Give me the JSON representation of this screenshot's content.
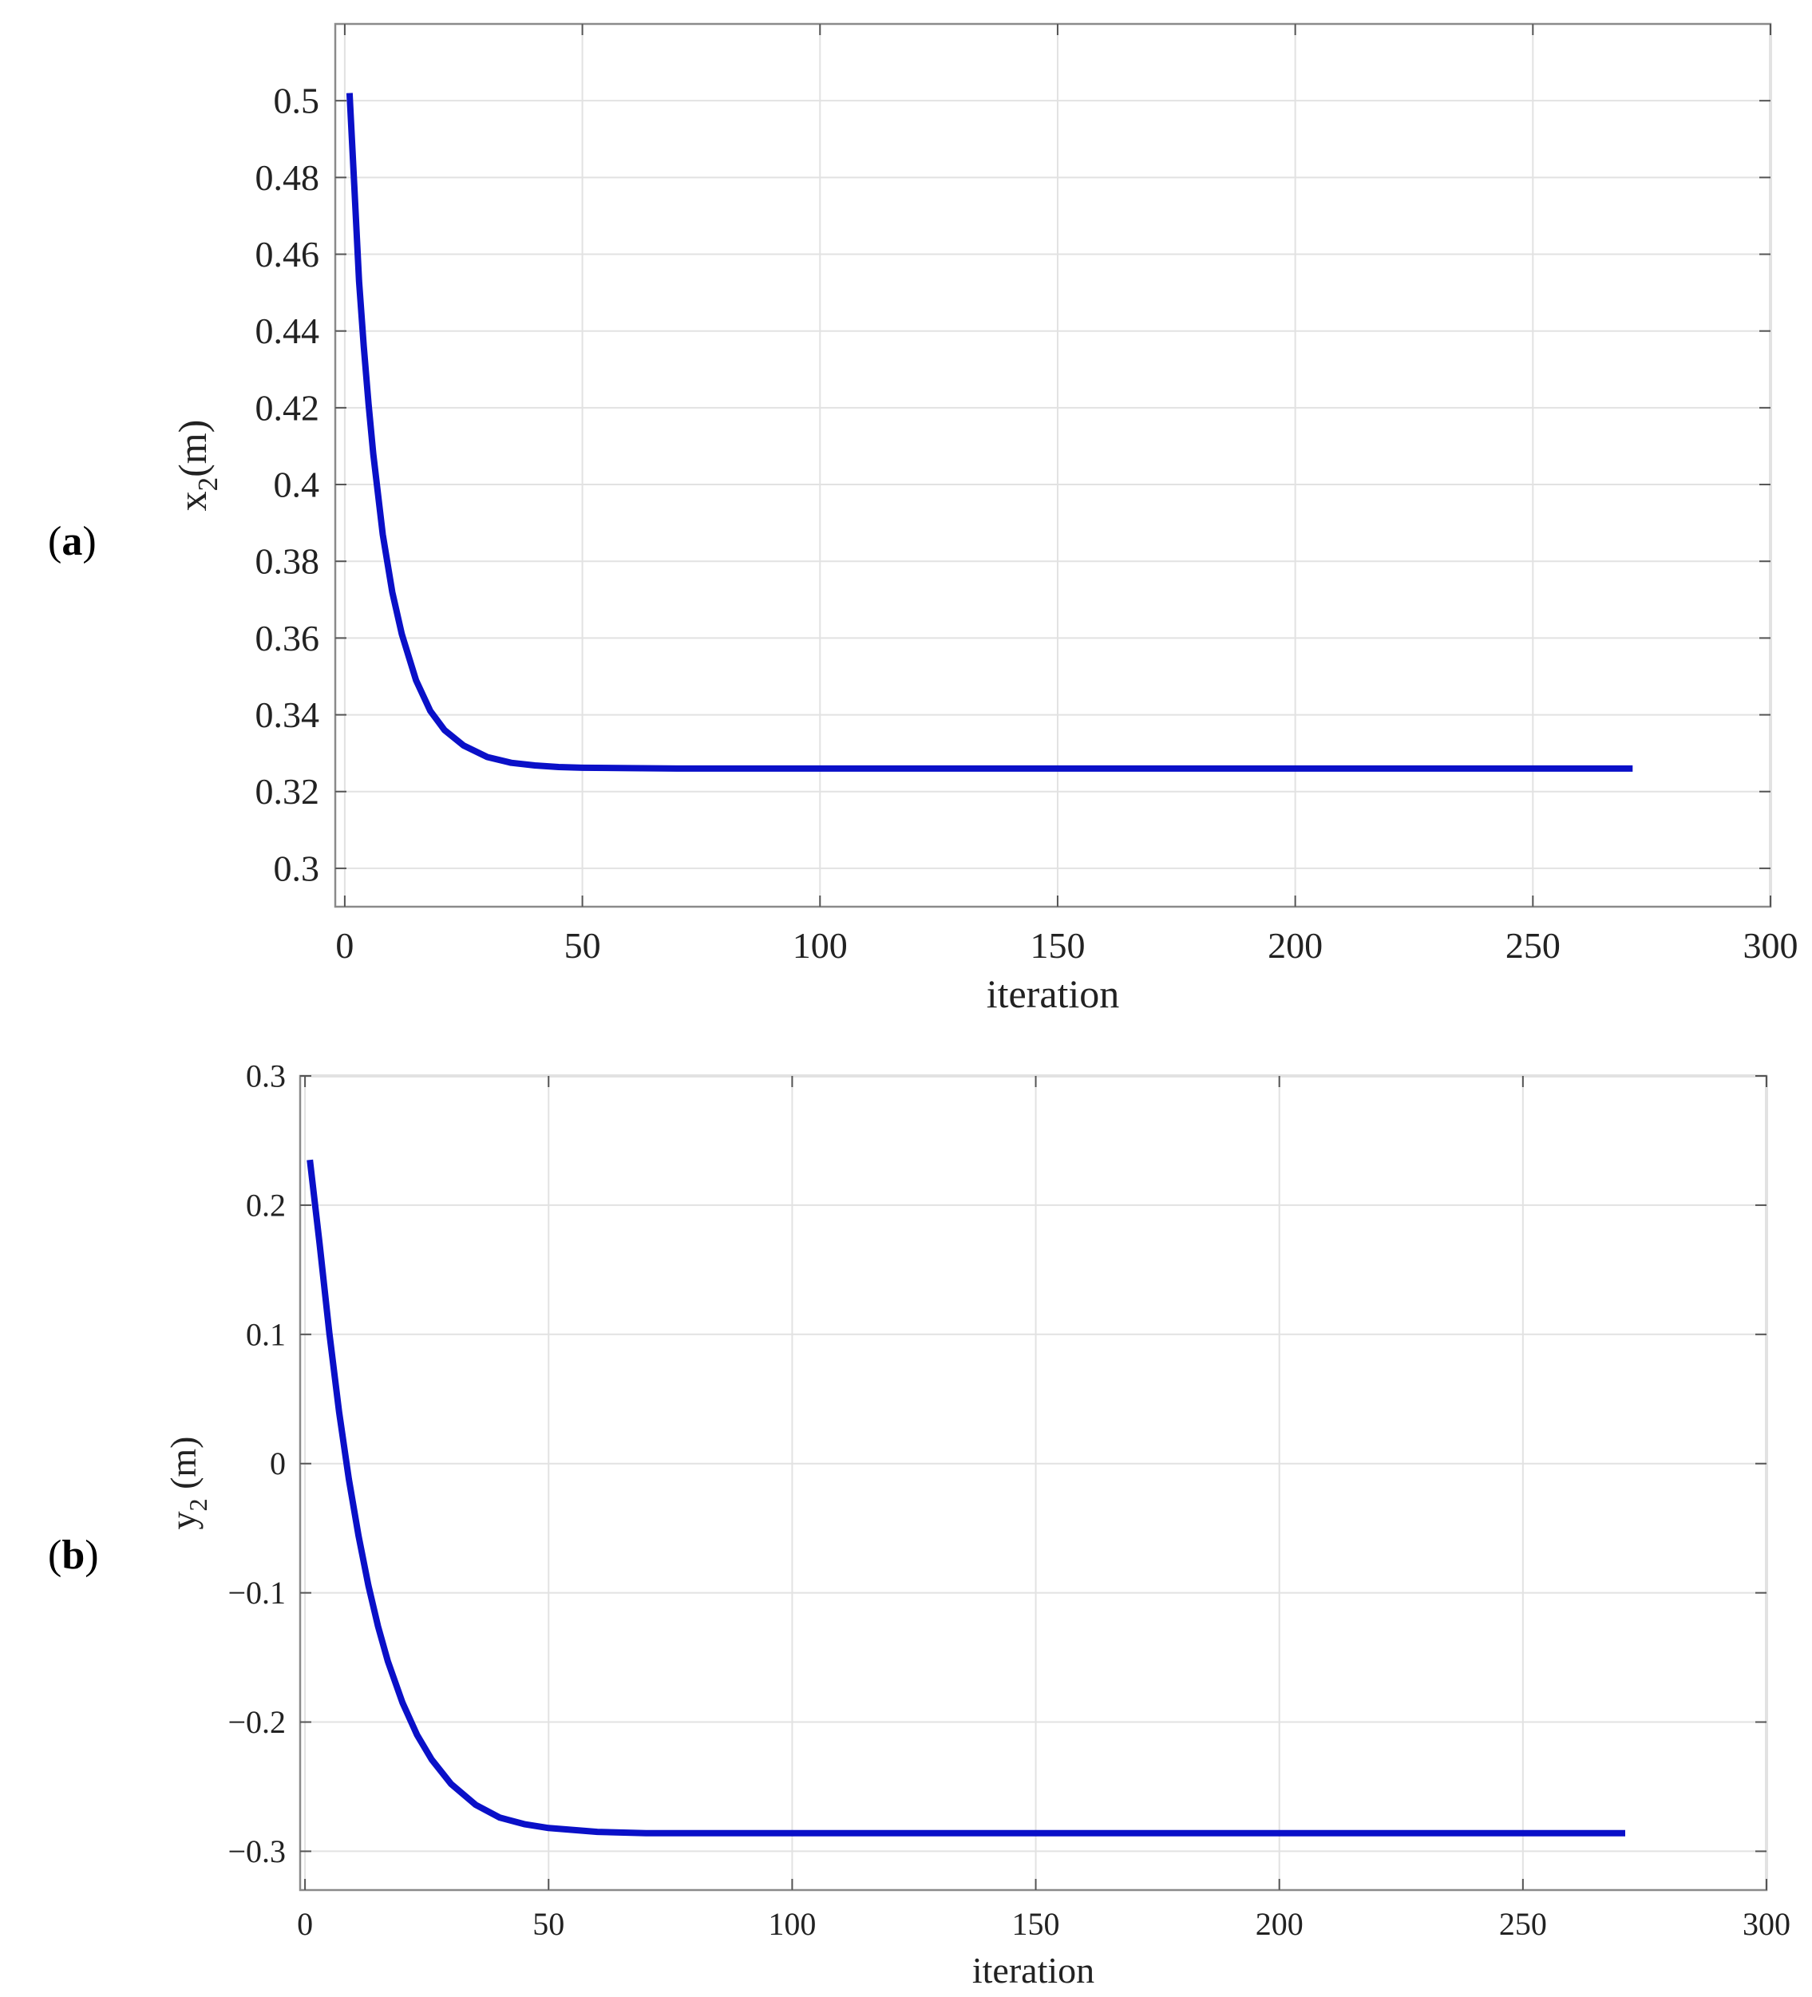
{
  "chart_data": [
    {
      "panel_label": "(a)",
      "type": "line",
      "xlabel": "iteration",
      "ylabel": "x",
      "ylabel_sub": "2",
      "ylabel_unit": "(m)",
      "xlim": [
        -2,
        300
      ],
      "ylim": [
        0.29,
        0.52
      ],
      "xticks": [
        0,
        50,
        100,
        150,
        200,
        250,
        300
      ],
      "yticks": [
        0.3,
        0.32,
        0.34,
        0.36,
        0.38,
        0.4,
        0.42,
        0.44,
        0.46,
        0.48,
        0.5
      ],
      "xtick_labels": [
        "0",
        "50",
        "100",
        "150",
        "200",
        "250",
        "300"
      ],
      "ytick_labels": [
        "0.3",
        "0.32",
        "0.34",
        "0.36",
        "0.38",
        "0.4",
        "0.42",
        "0.44",
        "0.46",
        "0.48",
        "0.5"
      ],
      "grid": true,
      "color": "#0a10c8",
      "series": [
        {
          "x": [
            1,
            2,
            3,
            4,
            5,
            6,
            8,
            10,
            12,
            15,
            18,
            21,
            25,
            30,
            35,
            40,
            45,
            50,
            60,
            70,
            80,
            100,
            150,
            200,
            250,
            271
          ],
          "y": [
            0.502,
            0.478,
            0.453,
            0.436,
            0.421,
            0.408,
            0.387,
            0.372,
            0.361,
            0.349,
            0.341,
            0.336,
            0.332,
            0.329,
            0.3275,
            0.3268,
            0.3264,
            0.3262,
            0.3261,
            0.326,
            0.326,
            0.326,
            0.326,
            0.326,
            0.326,
            0.326
          ]
        }
      ]
    },
    {
      "panel_label": "(b)",
      "type": "line",
      "xlabel": "iteration",
      "ylabel": "y",
      "ylabel_sub": "2",
      "ylabel_unit": " (m)",
      "xlim": [
        -1,
        300
      ],
      "ylim": [
        -0.33,
        0.3
      ],
      "xticks": [
        0,
        50,
        100,
        150,
        200,
        250,
        300
      ],
      "yticks": [
        -0.3,
        -0.2,
        -0.1,
        0,
        0.1,
        0.2,
        0.3
      ],
      "xtick_labels": [
        "0",
        "50",
        "100",
        "150",
        "200",
        "250",
        "300"
      ],
      "ytick_labels": [
        "−0.3",
        "−0.2",
        "−0.1",
        "0",
        "0.1",
        "0.2",
        "0.3"
      ],
      "grid": true,
      "color": "#0a10c8",
      "series": [
        {
          "x": [
            1,
            3,
            5,
            7,
            9,
            11,
            13,
            15,
            17,
            20,
            23,
            26,
            30,
            35,
            40,
            45,
            50,
            60,
            70,
            80,
            100,
            150,
            200,
            250,
            271
          ],
          "y": [
            0.235,
            0.17,
            0.101,
            0.04,
            -0.012,
            -0.056,
            -0.094,
            -0.126,
            -0.153,
            -0.185,
            -0.21,
            -0.229,
            -0.248,
            -0.264,
            -0.274,
            -0.279,
            -0.282,
            -0.285,
            -0.286,
            -0.286,
            -0.286,
            -0.286,
            -0.286,
            -0.286,
            -0.286
          ]
        }
      ]
    }
  ]
}
